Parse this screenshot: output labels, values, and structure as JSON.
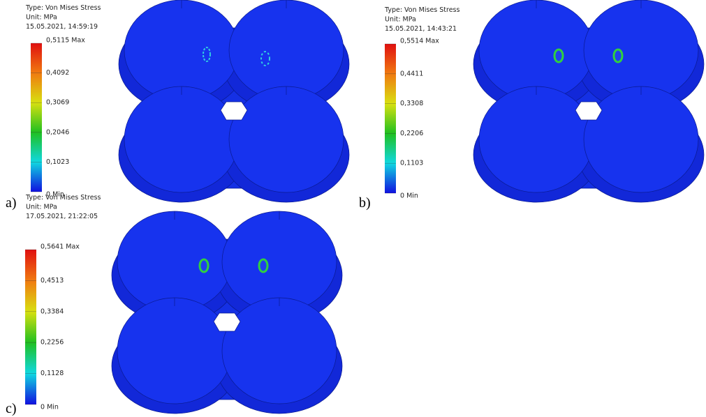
{
  "panels": [
    {
      "label": "a)",
      "result_type": "Type: Von Mises Stress",
      "unit": "Unit: MPa",
      "timestamp": "15.05.2021, 14:59:19",
      "scale_labels": [
        "0,5115 Max",
        "0,4092",
        "0,3069",
        "0,2046",
        "0,1023",
        "0 Min"
      ]
    },
    {
      "label": "b)",
      "result_type": "Type: Von Mises Stress",
      "unit": "Unit: MPa",
      "timestamp": "15.05.2021, 14:43:21",
      "scale_labels": [
        "0,5514 Max",
        "0,4411",
        "0,3308",
        "0,2206",
        "0,1103",
        "0 Min"
      ]
    },
    {
      "label": "c)",
      "result_type": "Type: Von Mises Stress",
      "unit": "Unit: MPa",
      "timestamp": "17.05.2021, 21:22:05",
      "scale_labels": [
        "0,5641 Max",
        "0,4513",
        "0,3384",
        "0,2256",
        "0,1128",
        "0 Min"
      ]
    }
  ]
}
